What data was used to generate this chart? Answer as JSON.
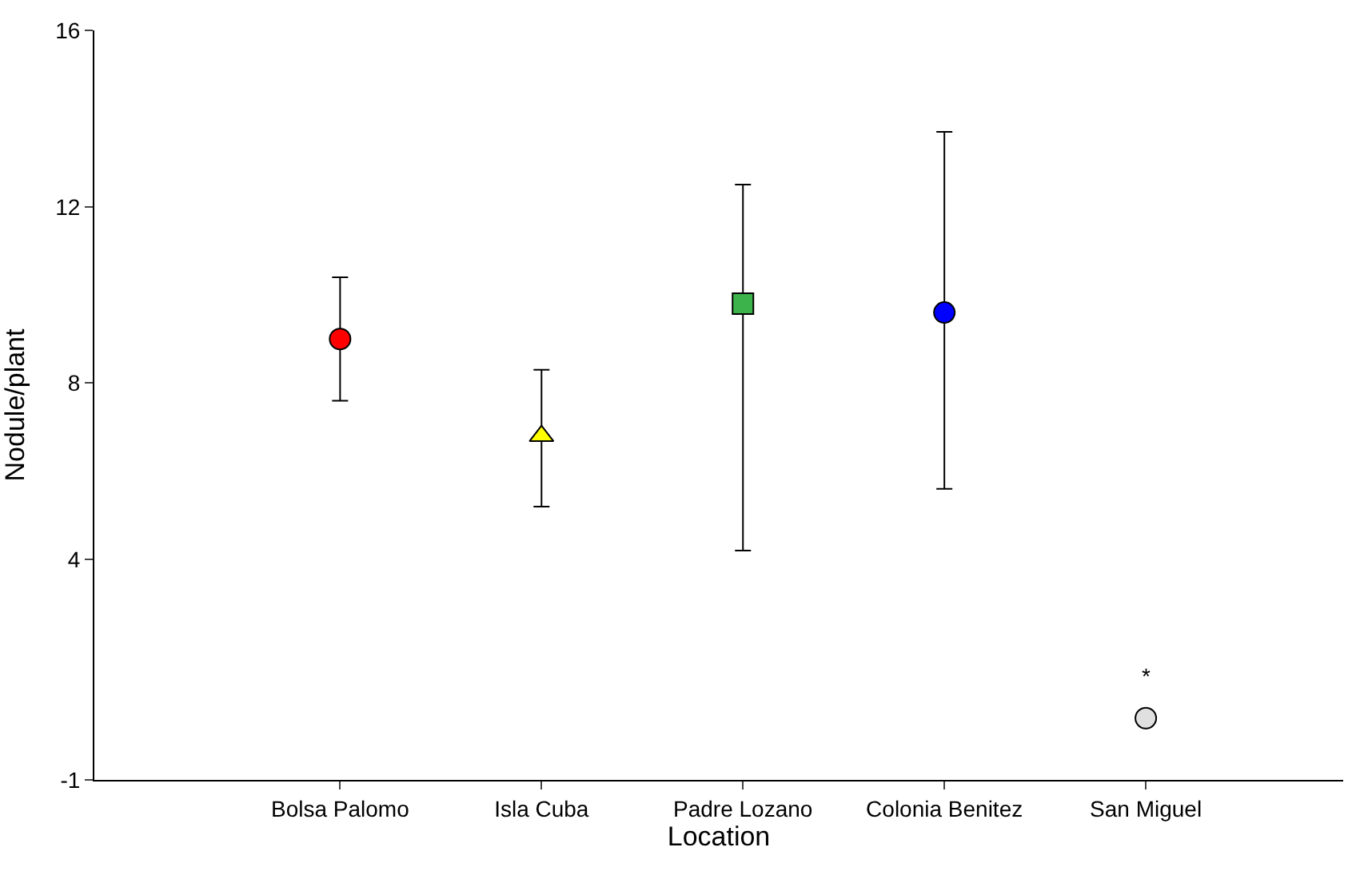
{
  "chart_data": {
    "type": "scatter",
    "xlabel": "Location",
    "ylabel": "Nodule/plant",
    "categories": [
      "Bolsa Palomo",
      "Isla Cuba",
      "Padre Lozano",
      "Colonia Benitez",
      "San Miguel"
    ],
    "series": [
      {
        "color": "#ff0000",
        "marker": "circle",
        "values": [
          9.0,
          null,
          null,
          null,
          null
        ],
        "errors": [
          [
            7.6,
            10.4
          ],
          null,
          null,
          null,
          null
        ]
      },
      {
        "color": "#ffff00",
        "marker": "triangle",
        "values": [
          null,
          6.8,
          null,
          null,
          null
        ],
        "errors": [
          null,
          [
            5.2,
            8.3
          ],
          null,
          null,
          null
        ]
      },
      {
        "color": "#3cb44b",
        "marker": "square",
        "values": [
          null,
          null,
          9.8,
          null,
          null
        ],
        "errors": [
          null,
          null,
          [
            4.2,
            12.5
          ],
          null,
          null
        ]
      },
      {
        "color": "#0000ff",
        "values": [
          null,
          null,
          null,
          9.6,
          null
        ],
        "errors": [
          null,
          null,
          null,
          [
            5.6,
            13.7
          ],
          null
        ]
      },
      {
        "color": "#e0e0e0",
        "values": [
          null,
          null,
          null,
          null,
          0.4
        ],
        "errors": [
          null,
          null,
          null,
          null,
          null
        ]
      }
    ],
    "ylim": [
      -1,
      16
    ],
    "yticks": [
      -1,
      4,
      8,
      12,
      16
    ],
    "annotations": [
      "*"
    ]
  }
}
